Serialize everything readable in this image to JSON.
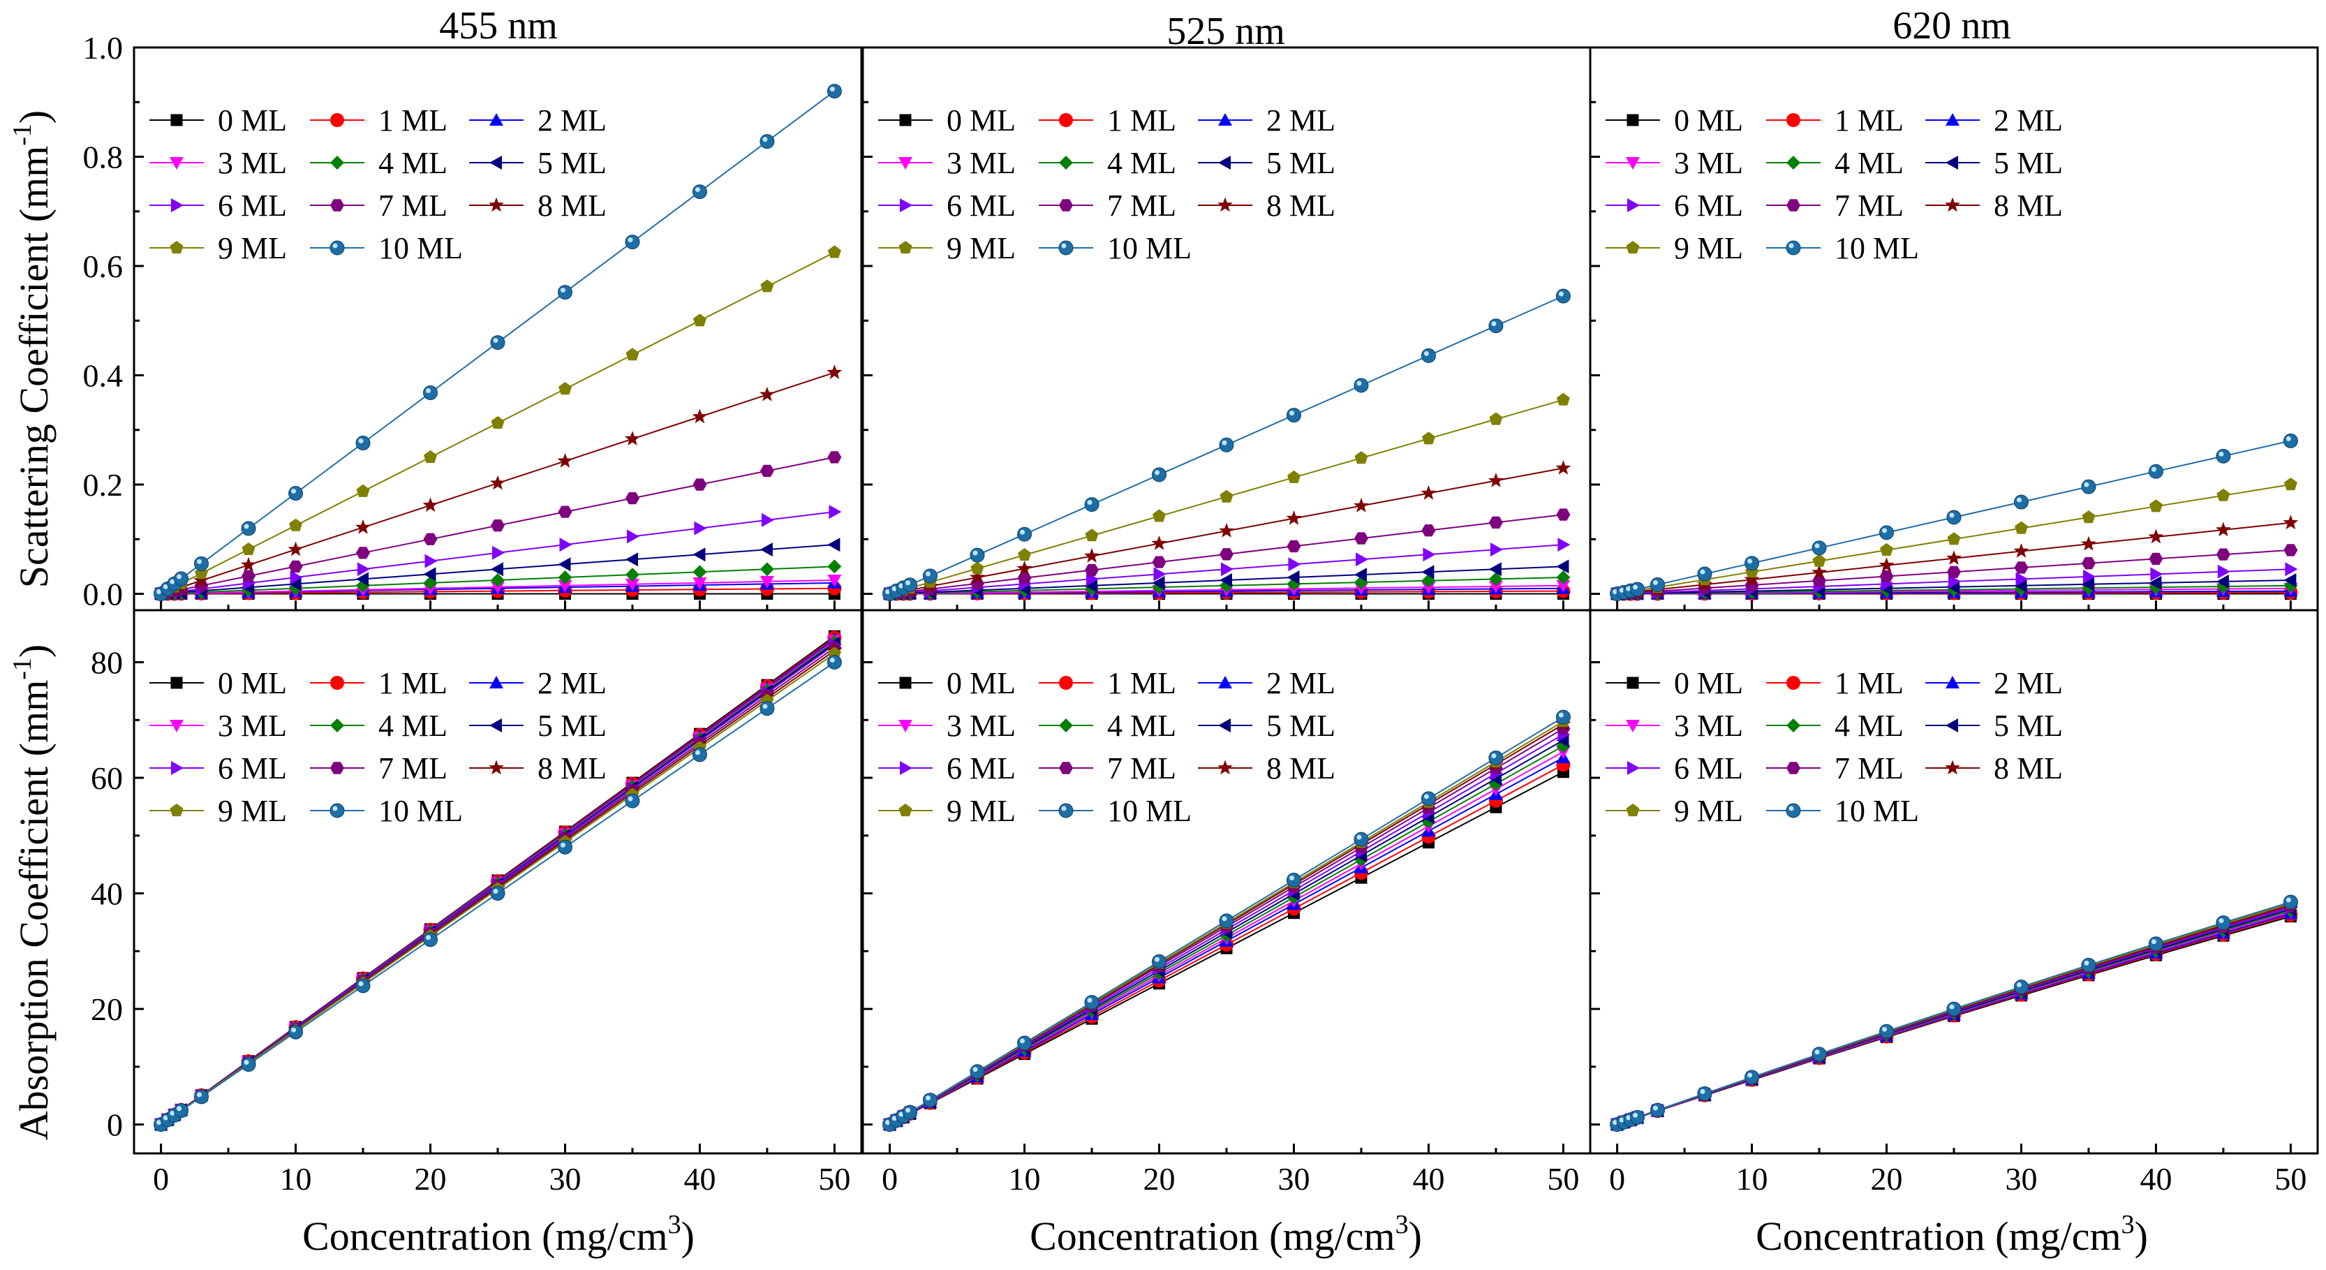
{
  "figure": {
    "columns": [
      "455 nm",
      "525 nm",
      "620 nm"
    ],
    "ylabel_top": {
      "text": "Scattering Coefficient (mm",
      "sup": "-1",
      "tail": ")"
    },
    "ylabel_bottom": {
      "text": "Absorption Coefficient (mm",
      "sup": "-1",
      "tail": ")"
    },
    "xlabel": {
      "text": "Concentration (mg/cm",
      "sup": "3",
      "tail": ")"
    }
  },
  "legend": {
    "entries": [
      "0 ML",
      "1 ML",
      "2 ML",
      "3 ML",
      "4 ML",
      "5 ML",
      "6 ML",
      "7 ML",
      "8 ML",
      "9 ML",
      "10 ML"
    ]
  },
  "styles": {
    "colors": [
      "#000000",
      "#ff0000",
      "#0000ff",
      "#ff00ff",
      "#008000",
      "#00007f",
      "#8000ff",
      "#7f007f",
      "#7f0000",
      "#808000",
      "#1e6ea6"
    ],
    "markers": [
      "square",
      "circle",
      "triangle-up",
      "triangle-down",
      "diamond",
      "triangle-left",
      "triangle-right",
      "hexagon",
      "star",
      "pentagon",
      "sphere"
    ]
  },
  "chart_data": [
    {
      "type": "line",
      "title": "455 nm",
      "xlabel": "",
      "ylabel": "Scattering Coefficient (mm-1)",
      "xlim": [
        -2,
        52
      ],
      "ylim": [
        -0.03,
        1.0
      ],
      "xticks": [
        0,
        10,
        20,
        30,
        40,
        50
      ],
      "yticks": [
        0.0,
        0.2,
        0.4,
        0.6,
        0.8,
        1.0
      ],
      "ytick_labels": [
        "0.0",
        "0.2",
        "0.4",
        "0.6",
        "0.8",
        "1.0"
      ],
      "x": [
        0,
        0.5,
        1,
        1.5,
        3,
        6.5,
        10,
        15,
        20,
        25,
        30,
        35,
        40,
        45,
        50
      ],
      "slopes": [
        0.0,
        0.0002,
        0.0004,
        0.0005,
        0.001,
        0.0018,
        0.003,
        0.005,
        0.0081,
        0.0125,
        0.0184
      ],
      "curvature": 0,
      "legend_location": "top-left"
    },
    {
      "type": "line",
      "title": "525 nm",
      "xlabel": "",
      "ylabel": "Scattering Coefficient (mm-1)",
      "xlim": [
        -2,
        52
      ],
      "ylim": [
        -0.03,
        1.0
      ],
      "xticks": [
        0,
        10,
        20,
        30,
        40,
        50
      ],
      "yticks": [
        0.0,
        0.2,
        0.4,
        0.6,
        0.8,
        1.0
      ],
      "x": [
        0,
        0.5,
        1,
        1.5,
        3,
        6.5,
        10,
        15,
        20,
        25,
        30,
        35,
        40,
        45,
        50
      ],
      "slopes": [
        0.0,
        0.0001,
        0.0002,
        0.0003,
        0.0006,
        0.001,
        0.0018,
        0.0029,
        0.0046,
        0.0071,
        0.0109
      ],
      "curvature": 0,
      "legend_location": "top-left"
    },
    {
      "type": "line",
      "title": "620 nm",
      "xlabel": "",
      "ylabel": "Scattering Coefficient (mm-1)",
      "xlim": [
        -2,
        52
      ],
      "ylim": [
        -0.03,
        1.0
      ],
      "xticks": [
        0,
        10,
        20,
        30,
        40,
        50
      ],
      "yticks": [
        0.0,
        0.2,
        0.4,
        0.6,
        0.8,
        1.0
      ],
      "x": [
        0,
        0.5,
        1,
        1.5,
        3,
        6.5,
        10,
        15,
        20,
        25,
        30,
        35,
        40,
        45,
        50
      ],
      "slopes": [
        0.0,
        5e-05,
        0.0001,
        0.0002,
        0.0003,
        0.0005,
        0.0009,
        0.0016,
        0.0026,
        0.004,
        0.0056
      ],
      "curvature": 0,
      "legend_location": "top-left"
    },
    {
      "type": "line",
      "title": "",
      "xlabel": "Concentration (mg/cm3)",
      "ylabel": "Absorption Coefficient (mm-1)",
      "xlim": [
        -2,
        52
      ],
      "ylim": [
        -5,
        89
      ],
      "xticks": [
        0,
        10,
        20,
        30,
        40,
        50
      ],
      "yticks": [
        0,
        20,
        40,
        60,
        80
      ],
      "x": [
        0,
        0.5,
        1,
        1.5,
        3,
        6.5,
        10,
        15,
        20,
        25,
        30,
        35,
        40,
        45,
        50
      ],
      "slopes": [
        1.69,
        1.685,
        1.68,
        1.675,
        1.67,
        1.665,
        1.66,
        1.65,
        1.64,
        1.63,
        1.6
      ],
      "curvature": 0,
      "legend_location": "top-left"
    },
    {
      "type": "line",
      "title": "",
      "xlabel": "Concentration (mg/cm3)",
      "ylabel": "Absorption Coefficient (mm-1)",
      "xlim": [
        -2,
        52
      ],
      "ylim": [
        -5,
        89
      ],
      "xticks": [
        0,
        10,
        20,
        30,
        40,
        50
      ],
      "yticks": [
        0,
        20,
        40,
        60,
        80
      ],
      "x": [
        0,
        0.5,
        1,
        1.5,
        3,
        6.5,
        10,
        15,
        20,
        25,
        30,
        35,
        40,
        45,
        50
      ],
      "slopes": [
        1.22,
        1.245,
        1.27,
        1.29,
        1.31,
        1.33,
        1.35,
        1.37,
        1.385,
        1.395,
        1.41
      ],
      "curvature": 0,
      "legend_location": "top-left"
    },
    {
      "type": "line",
      "title": "",
      "xlabel": "Concentration (mg/cm3)",
      "ylabel": "Absorption Coefficient (mm-1)",
      "xlim": [
        -2,
        52
      ],
      "ylim": [
        -5,
        89
      ],
      "xticks": [
        0,
        10,
        20,
        30,
        40,
        50
      ],
      "yticks": [
        0,
        20,
        40,
        60,
        80
      ],
      "x": [
        0,
        0.5,
        1,
        1.5,
        3,
        6.5,
        10,
        15,
        20,
        25,
        30,
        35,
        40,
        45,
        50
      ],
      "slopes": [
        0.78,
        0.785,
        0.79,
        0.795,
        0.8,
        0.805,
        0.81,
        0.815,
        0.82,
        0.825,
        0.83
      ],
      "curvature": 0.0012,
      "legend_location": "top-left"
    }
  ]
}
